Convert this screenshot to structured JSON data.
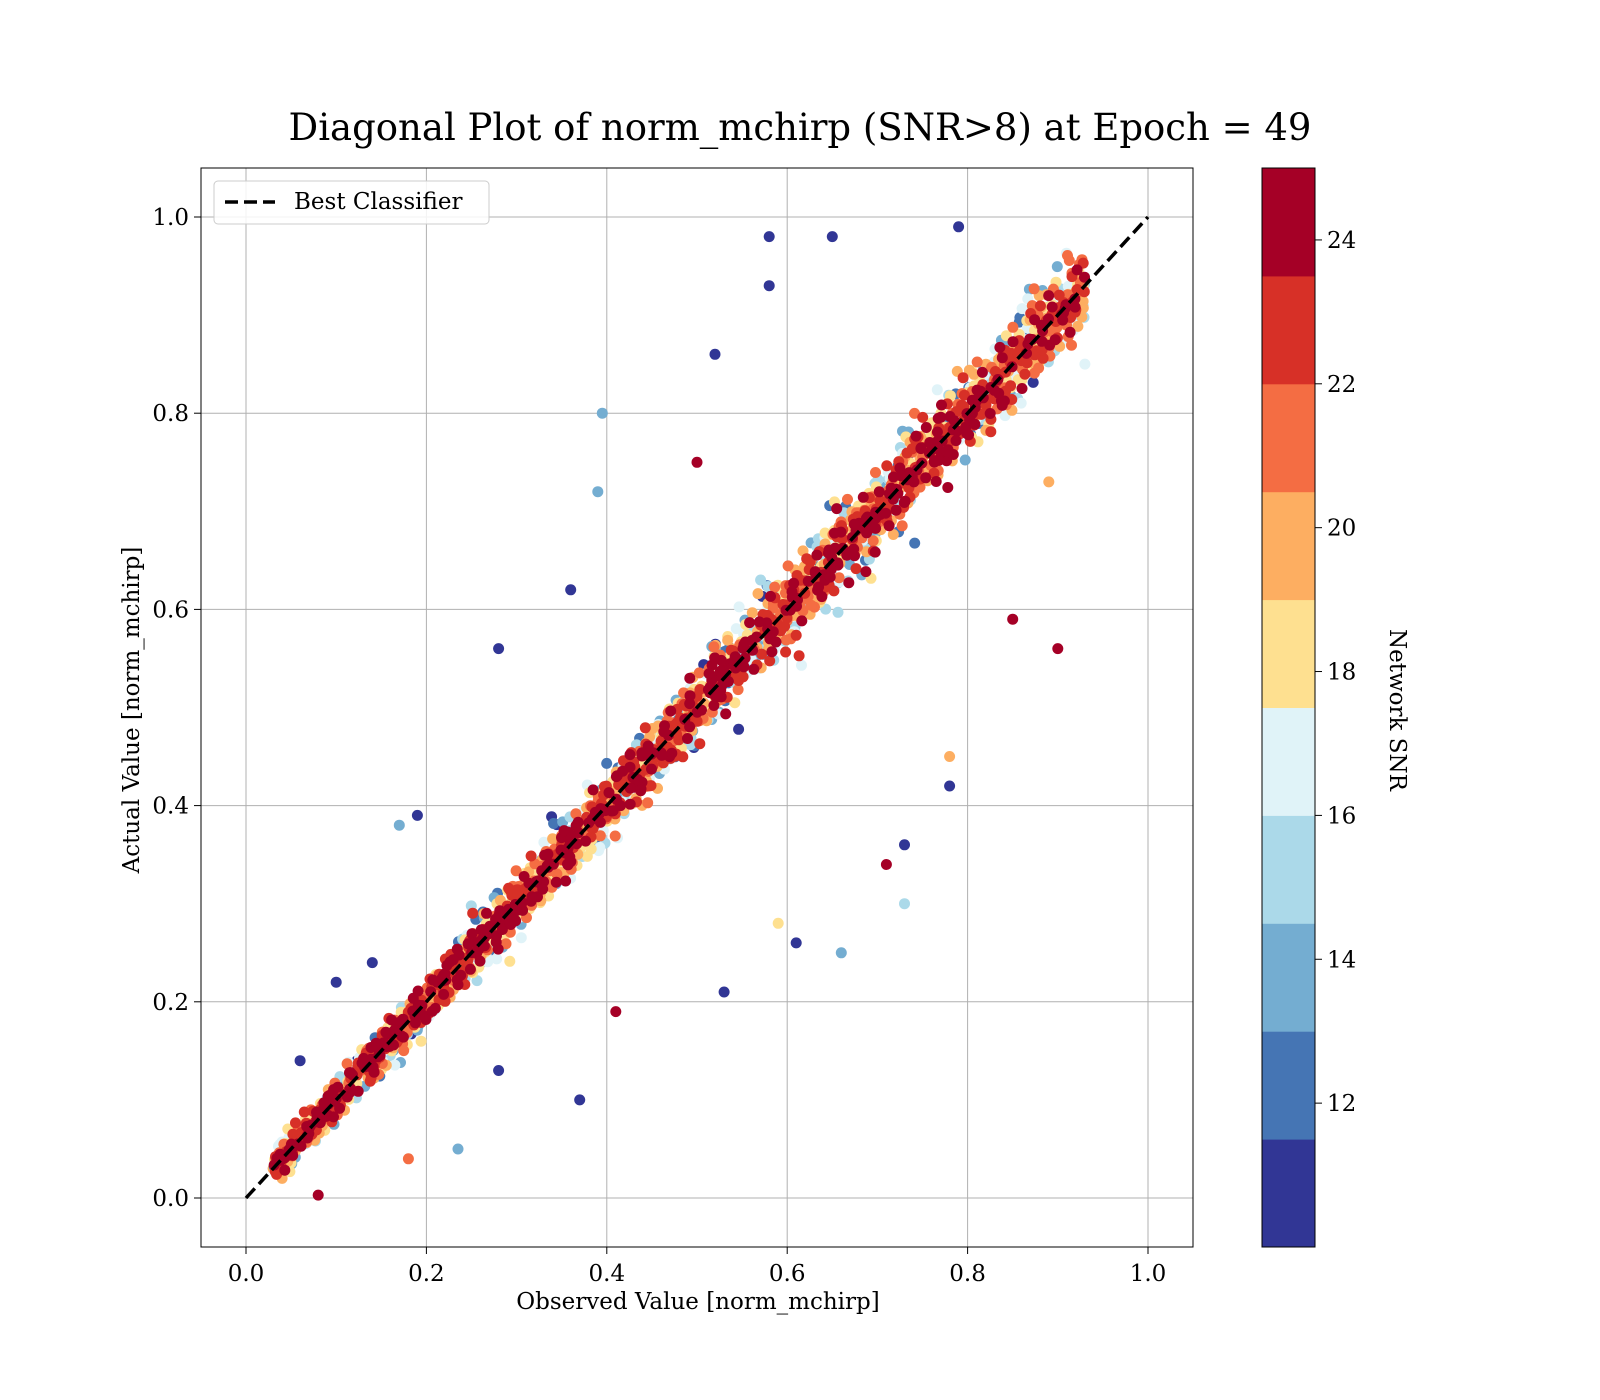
{
  "chart_data": {
    "type": "scatter",
    "title": "Diagonal Plot of norm_mchirp (SNR>8) at Epoch = 49",
    "xlabel": "Observed Value [norm_mchirp]",
    "ylabel": "Actual Value [norm_mchirp]",
    "xlim": [
      -0.05,
      1.05
    ],
    "ylim": [
      -0.05,
      1.05
    ],
    "xticks": [
      "0.0",
      "0.2",
      "0.4",
      "0.6",
      "0.8",
      "1.0"
    ],
    "yticks": [
      "0.0",
      "0.2",
      "0.4",
      "0.6",
      "0.8",
      "1.0"
    ],
    "grid": true,
    "legend": {
      "placement": "upper-left",
      "entries": [
        "Best Classifier"
      ]
    },
    "reference_line": {
      "name": "Best Classifier",
      "x": [
        0,
        1
      ],
      "y": [
        0,
        1
      ],
      "color": "#000000",
      "style": "dashed"
    },
    "colorbar": {
      "label": "Network SNR",
      "range": [
        10,
        25
      ],
      "ticks": [
        "12",
        "14",
        "16",
        "18",
        "20",
        "22",
        "24"
      ],
      "colors": [
        "#313695",
        "#4575b4",
        "#74add1",
        "#abd9e9",
        "#e0f3f8",
        "#fee090",
        "#fdae61",
        "#f46d43",
        "#d73027",
        "#a50026"
      ]
    },
    "series": [
      {
        "points": [
          {
            "x": 0.08,
            "y": 0.003,
            "snr": 24.5
          },
          {
            "x": 0.04,
            "y": 0.02,
            "snr": 19
          },
          {
            "x": 0.03,
            "y": 0.03,
            "snr": 20
          },
          {
            "x": 0.06,
            "y": 0.14,
            "snr": 11
          },
          {
            "x": 0.1,
            "y": 0.22,
            "snr": 11
          },
          {
            "x": 0.14,
            "y": 0.24,
            "snr": 11
          },
          {
            "x": 0.19,
            "y": 0.39,
            "snr": 11
          },
          {
            "x": 0.17,
            "y": 0.38,
            "snr": 13
          },
          {
            "x": 0.28,
            "y": 0.56,
            "snr": 11
          },
          {
            "x": 0.36,
            "y": 0.62,
            "snr": 11
          },
          {
            "x": 0.395,
            "y": 0.8,
            "snr": 13
          },
          {
            "x": 0.39,
            "y": 0.72,
            "snr": 14
          },
          {
            "x": 0.52,
            "y": 0.86,
            "snr": 11
          },
          {
            "x": 0.58,
            "y": 0.98,
            "snr": 11
          },
          {
            "x": 0.65,
            "y": 0.98,
            "snr": 11
          },
          {
            "x": 0.58,
            "y": 0.93,
            "snr": 11
          },
          {
            "x": 0.79,
            "y": 0.99,
            "snr": 11
          },
          {
            "x": 0.93,
            "y": 0.85,
            "snr": 16
          },
          {
            "x": 0.89,
            "y": 0.73,
            "snr": 20
          },
          {
            "x": 0.85,
            "y": 0.59,
            "snr": 24
          },
          {
            "x": 0.78,
            "y": 0.42,
            "snr": 11
          },
          {
            "x": 0.78,
            "y": 0.45,
            "snr": 20
          },
          {
            "x": 0.73,
            "y": 0.36,
            "snr": 11
          },
          {
            "x": 0.73,
            "y": 0.3,
            "snr": 15
          },
          {
            "x": 0.71,
            "y": 0.34,
            "snr": 24
          },
          {
            "x": 0.66,
            "y": 0.25,
            "snr": 13
          },
          {
            "x": 0.61,
            "y": 0.26,
            "snr": 11
          },
          {
            "x": 0.53,
            "y": 0.21,
            "snr": 11
          },
          {
            "x": 0.41,
            "y": 0.19,
            "snr": 24
          },
          {
            "x": 0.37,
            "y": 0.1,
            "snr": 11
          },
          {
            "x": 0.235,
            "y": 0.05,
            "snr": 14
          },
          {
            "x": 0.18,
            "y": 0.04,
            "snr": 21
          },
          {
            "x": 0.28,
            "y": 0.13,
            "snr": 11
          },
          {
            "x": 0.5,
            "y": 0.75,
            "snr": 24
          },
          {
            "x": 0.9,
            "y": 0.56,
            "snr": 24
          },
          {
            "x": 0.59,
            "y": 0.28,
            "snr": 18
          }
        ]
      }
    ],
    "trend": {
      "description_free": true,
      "x_start": 0.03,
      "x_end": 0.93,
      "dense_band_count": 2600,
      "seed": 49
    }
  }
}
